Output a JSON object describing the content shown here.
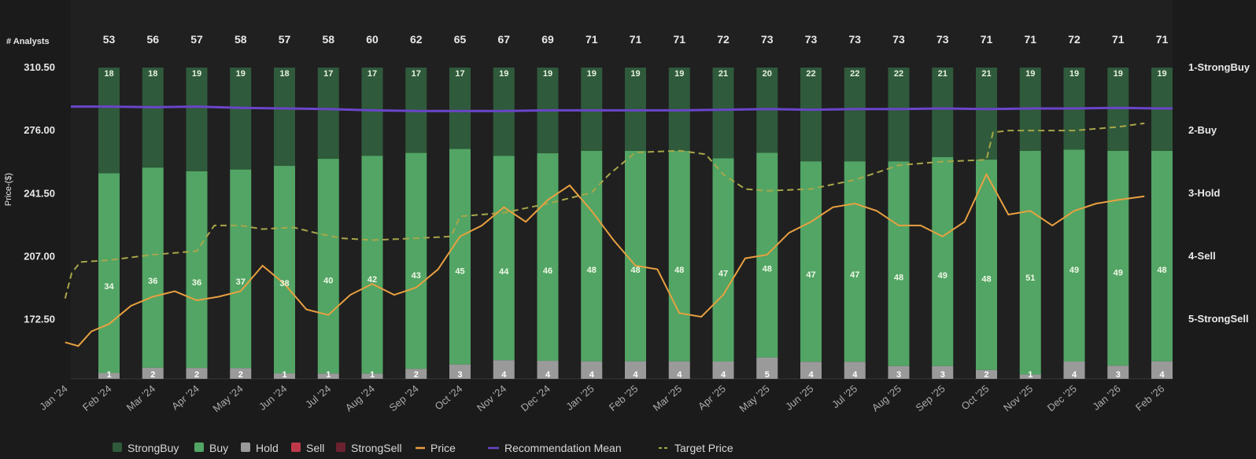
{
  "chart_data": {
    "type": "stacked-bar-with-lines",
    "analysts_label": "# Analysts",
    "y_axis_title": "Price-($)",
    "left_ticks": [
      "310.50",
      "276.00",
      "241.50",
      "207.00",
      "172.50"
    ],
    "right_ticks": [
      "1-StrongBuy",
      "2-Buy",
      "3-Hold",
      "4-Sell",
      "5-StrongSell"
    ],
    "ylim": [
      140,
      310.5
    ],
    "categories": [
      "Feb '24",
      "Mar '24",
      "Apr '24",
      "May '24",
      "Jun '24",
      "Jul '24",
      "Aug '24",
      "Sep '24",
      "Oct '24",
      "Nov '24",
      "Dec '24",
      "Jan '25",
      "Feb '25",
      "Mar '25",
      "Apr '25",
      "May '25",
      "Jun '25",
      "Jul '25",
      "Aug '25",
      "Sep '25",
      "Oct '25",
      "Nov '25",
      "Dec '25",
      "Jan '26",
      "Feb '26"
    ],
    "x_tick_labels": [
      "Jan '24",
      "Feb '24",
      "Mar '24",
      "Apr '24",
      "May '24",
      "Jun '24",
      "Jul '24",
      "Aug '24",
      "Sep '24",
      "Oct '24",
      "Nov '24",
      "Dec '24",
      "Jan '25",
      "Feb '25",
      "Mar '25",
      "Apr '25",
      "May '25",
      "Jun '25",
      "Jul '25",
      "Aug '25",
      "Sep '25",
      "Oct '25",
      "Nov '25",
      "Dec '25",
      "Jan '26",
      "Feb '26"
    ],
    "analysts": [
      53,
      56,
      57,
      58,
      57,
      58,
      60,
      62,
      65,
      67,
      69,
      71,
      71,
      71,
      72,
      73,
      73,
      73,
      73,
      73,
      71,
      71,
      72,
      71,
      71
    ],
    "series": [
      {
        "name": "StrongBuy",
        "color": "#2f5a3b",
        "values": [
          18,
          18,
          19,
          19,
          18,
          17,
          17,
          17,
          17,
          19,
          19,
          19,
          19,
          19,
          21,
          20,
          22,
          22,
          22,
          21,
          21,
          19,
          19,
          19,
          19
        ]
      },
      {
        "name": "Buy",
        "color": "#52a565",
        "values": [
          34,
          36,
          36,
          37,
          38,
          40,
          42,
          43,
          45,
          44,
          46,
          48,
          48,
          48,
          47,
          48,
          47,
          47,
          48,
          49,
          48,
          51,
          49,
          49,
          48
        ]
      },
      {
        "name": "Hold",
        "color": "#9a9a9a",
        "values": [
          1,
          2,
          2,
          2,
          1,
          1,
          1,
          2,
          3,
          4,
          4,
          4,
          4,
          4,
          4,
          5,
          4,
          4,
          3,
          3,
          2,
          1,
          4,
          3,
          4
        ]
      },
      {
        "name": "Sell",
        "color": "#c0394b",
        "values": [
          0,
          0,
          0,
          0,
          0,
          0,
          0,
          0,
          0,
          0,
          0,
          0,
          0,
          0,
          0,
          0,
          0,
          0,
          0,
          0,
          0,
          0,
          0,
          0,
          0
        ]
      },
      {
        "name": "StrongSell",
        "color": "#6b2230",
        "values": [
          0,
          0,
          0,
          0,
          0,
          0,
          0,
          0,
          0,
          0,
          0,
          0,
          0,
          0,
          0,
          0,
          0,
          0,
          0,
          0,
          0,
          0,
          0,
          0,
          0
        ]
      }
    ],
    "price": [
      [
        0,
        160
      ],
      [
        0.3,
        158
      ],
      [
        0.6,
        166
      ],
      [
        1,
        170
      ],
      [
        1.5,
        180
      ],
      [
        2,
        185
      ],
      [
        2.5,
        188
      ],
      [
        3,
        183
      ],
      [
        3.5,
        185
      ],
      [
        4,
        188
      ],
      [
        4.5,
        202
      ],
      [
        5,
        192
      ],
      [
        5.5,
        178
      ],
      [
        6,
        175
      ],
      [
        6.5,
        186
      ],
      [
        7,
        192
      ],
      [
        7.5,
        186
      ],
      [
        8,
        190
      ],
      [
        8.5,
        200
      ],
      [
        9,
        218
      ],
      [
        9.5,
        224
      ],
      [
        10,
        234
      ],
      [
        10.5,
        226
      ],
      [
        11,
        238
      ],
      [
        11.5,
        246
      ],
      [
        12,
        232
      ],
      [
        12.5,
        216
      ],
      [
        13,
        202
      ],
      [
        13.5,
        200
      ],
      [
        14,
        176
      ],
      [
        14.5,
        174
      ],
      [
        15,
        186
      ],
      [
        15.5,
        206
      ],
      [
        16,
        208
      ],
      [
        16.5,
        220
      ],
      [
        17,
        226
      ],
      [
        17.5,
        234
      ],
      [
        18,
        236
      ],
      [
        18.5,
        232
      ],
      [
        19,
        224
      ],
      [
        19.5,
        224
      ],
      [
        20,
        218
      ],
      [
        20.5,
        226
      ],
      [
        21,
        252
      ],
      [
        21.5,
        230
      ],
      [
        22,
        232
      ],
      [
        22.5,
        224
      ],
      [
        23,
        232
      ],
      [
        23.5,
        236
      ],
      [
        24,
        238
      ],
      [
        24.6,
        240
      ]
    ],
    "recommendation_mean": [
      1.62,
      1.63,
      1.62,
      1.64,
      1.65,
      1.66,
      1.68,
      1.69,
      1.69,
      1.69,
      1.68,
      1.68,
      1.68,
      1.68,
      1.67,
      1.66,
      1.67,
      1.66,
      1.66,
      1.65,
      1.66,
      1.65,
      1.65,
      1.64,
      1.65
    ],
    "target_price": [
      [
        0,
        184
      ],
      [
        0.15,
        198
      ],
      [
        0.35,
        204
      ],
      [
        1,
        205
      ],
      [
        2,
        208
      ],
      [
        3,
        210
      ],
      [
        3.4,
        224
      ],
      [
        4,
        224
      ],
      [
        4.5,
        222
      ],
      [
        5.2,
        223
      ],
      [
        5.7,
        220
      ],
      [
        6.3,
        217
      ],
      [
        7,
        216
      ],
      [
        8,
        217
      ],
      [
        8.8,
        218
      ],
      [
        9,
        229
      ],
      [
        10,
        231
      ],
      [
        11,
        236
      ],
      [
        12,
        242
      ],
      [
        12.4,
        252
      ],
      [
        13,
        264
      ],
      [
        14,
        265
      ],
      [
        14.6,
        263
      ],
      [
        15,
        252
      ],
      [
        15.5,
        244
      ],
      [
        16,
        243
      ],
      [
        17,
        244
      ],
      [
        18,
        249
      ],
      [
        18.5,
        253
      ],
      [
        19,
        257
      ],
      [
        20,
        259
      ],
      [
        21,
        260
      ],
      [
        21.15,
        275
      ],
      [
        21.5,
        276
      ],
      [
        22,
        276
      ],
      [
        23,
        276
      ],
      [
        24,
        278
      ],
      [
        24.6,
        280
      ]
    ],
    "legend": [
      "StrongBuy",
      "Buy",
      "Hold",
      "Sell",
      "StrongSell",
      "Price",
      "Recommendation Mean",
      "Target Price"
    ]
  }
}
